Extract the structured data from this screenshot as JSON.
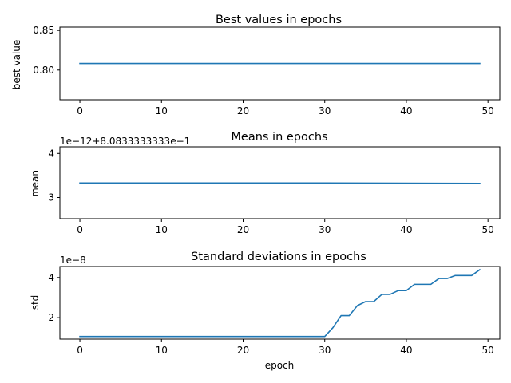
{
  "chart_data": [
    {
      "type": "line",
      "title": "Best values in epochs",
      "xlabel": "",
      "ylabel": "best value",
      "xlim": [
        -2.45,
        51.45
      ],
      "ylim": [
        0.7625,
        0.8542
      ],
      "xticks": [
        0,
        10,
        20,
        30,
        40,
        50
      ],
      "xticklabels": [
        "0",
        "10",
        "20",
        "30",
        "40",
        "50"
      ],
      "yticks": [
        0.8,
        0.85
      ],
      "yticklabels": [
        "0.80",
        "0.85"
      ],
      "offset_text": "",
      "grid": false,
      "color": "#1f77b4",
      "x": [
        0,
        49
      ],
      "y": [
        0.8083,
        0.8083
      ]
    },
    {
      "type": "line",
      "title": "Means in epochs",
      "xlabel": "",
      "ylabel": "mean",
      "xlim": [
        -2.45,
        51.45
      ],
      "ylim": [
        2.52,
        4.15
      ],
      "xticks": [
        0,
        10,
        20,
        30,
        40,
        50
      ],
      "xticklabels": [
        "0",
        "10",
        "20",
        "30",
        "40",
        "50"
      ],
      "yticks": [
        3,
        4
      ],
      "yticklabels": [
        "3",
        "4"
      ],
      "offset_text": "1e−12+8.0833333333e−1",
      "grid": false,
      "color": "#1f77b4",
      "x": [
        0,
        30,
        49
      ],
      "y": [
        3.33,
        3.33,
        3.32
      ]
    },
    {
      "type": "line",
      "title": "Standard deviations in epochs",
      "xlabel": "epoch",
      "ylabel": "std",
      "xlim": [
        -2.45,
        51.45
      ],
      "ylim": [
        0.93,
        4.55
      ],
      "xticks": [
        0,
        10,
        20,
        30,
        40,
        50
      ],
      "xticklabels": [
        "0",
        "10",
        "20",
        "30",
        "40",
        "50"
      ],
      "yticks": [
        2,
        4
      ],
      "yticklabels": [
        "2",
        "4"
      ],
      "offset_text": "1e−8",
      "grid": false,
      "color": "#1f77b4",
      "x": [
        0,
        1,
        2,
        3,
        4,
        5,
        6,
        7,
        8,
        9,
        10,
        11,
        12,
        13,
        14,
        15,
        16,
        17,
        18,
        19,
        20,
        21,
        22,
        23,
        24,
        25,
        26,
        27,
        28,
        29,
        30,
        31,
        32,
        33,
        34,
        35,
        36,
        37,
        38,
        39,
        40,
        41,
        42,
        43,
        44,
        45,
        46,
        47,
        48,
        49
      ],
      "y": [
        1.06,
        1.06,
        1.06,
        1.06,
        1.06,
        1.06,
        1.06,
        1.06,
        1.06,
        1.06,
        1.06,
        1.06,
        1.06,
        1.06,
        1.06,
        1.06,
        1.06,
        1.06,
        1.06,
        1.06,
        1.06,
        1.06,
        1.06,
        1.06,
        1.06,
        1.06,
        1.06,
        1.06,
        1.06,
        1.06,
        1.06,
        1.5,
        2.1,
        2.1,
        2.6,
        2.8,
        2.8,
        3.16,
        3.16,
        3.35,
        3.35,
        3.66,
        3.66,
        3.66,
        3.95,
        3.95,
        4.1,
        4.1,
        4.1,
        4.39
      ]
    }
  ]
}
